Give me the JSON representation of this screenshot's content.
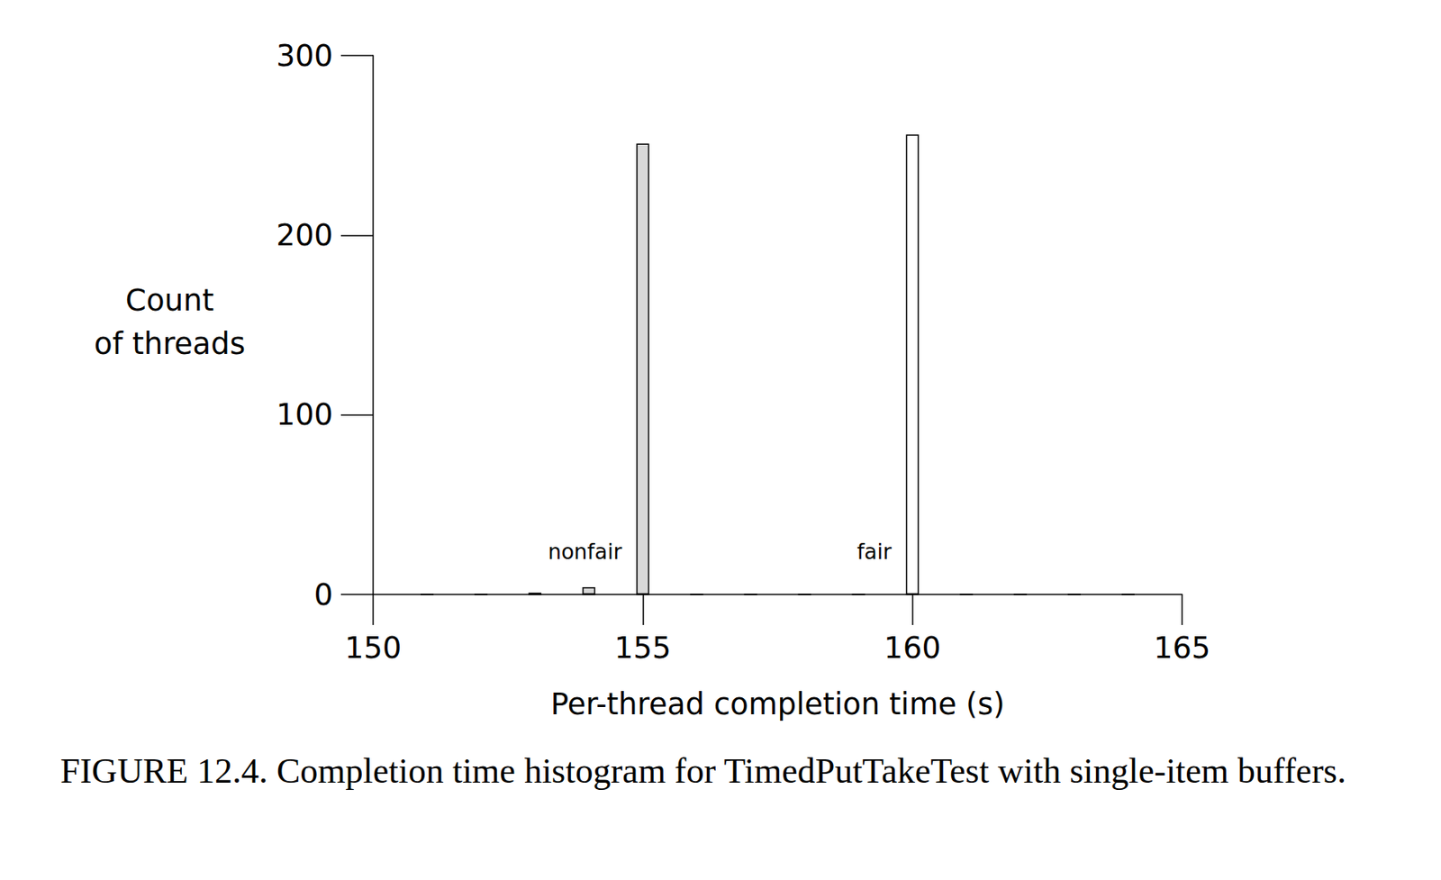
{
  "chart_data": {
    "type": "bar",
    "caption": "FIGURE 12.4. Completion time histogram for TimedPutTakeTest with single-item buffers.",
    "x_label": "Per-thread completion time (s)",
    "y_label": "Count\nof threads",
    "x": [
      151,
      152,
      153,
      154,
      155,
      156,
      157,
      158,
      159,
      160,
      161,
      162,
      163,
      164
    ],
    "series": [
      {
        "name": "nonfair",
        "color": "#d9d9d9",
        "values": [
          0,
          0,
          1,
          4,
          251,
          0,
          0,
          0,
          0,
          0,
          0,
          0,
          0,
          0
        ]
      },
      {
        "name": "fair",
        "color": "#ffffff",
        "values": [
          0,
          0,
          0,
          0,
          0,
          0,
          0,
          0,
          0,
          256,
          0,
          0,
          0,
          0
        ]
      }
    ],
    "xlim": [
      150,
      165
    ],
    "xticks": [
      150,
      155,
      160,
      165
    ],
    "ylim": [
      0,
      300
    ],
    "yticks": [
      0,
      100,
      200,
      300
    ],
    "grid": false
  }
}
